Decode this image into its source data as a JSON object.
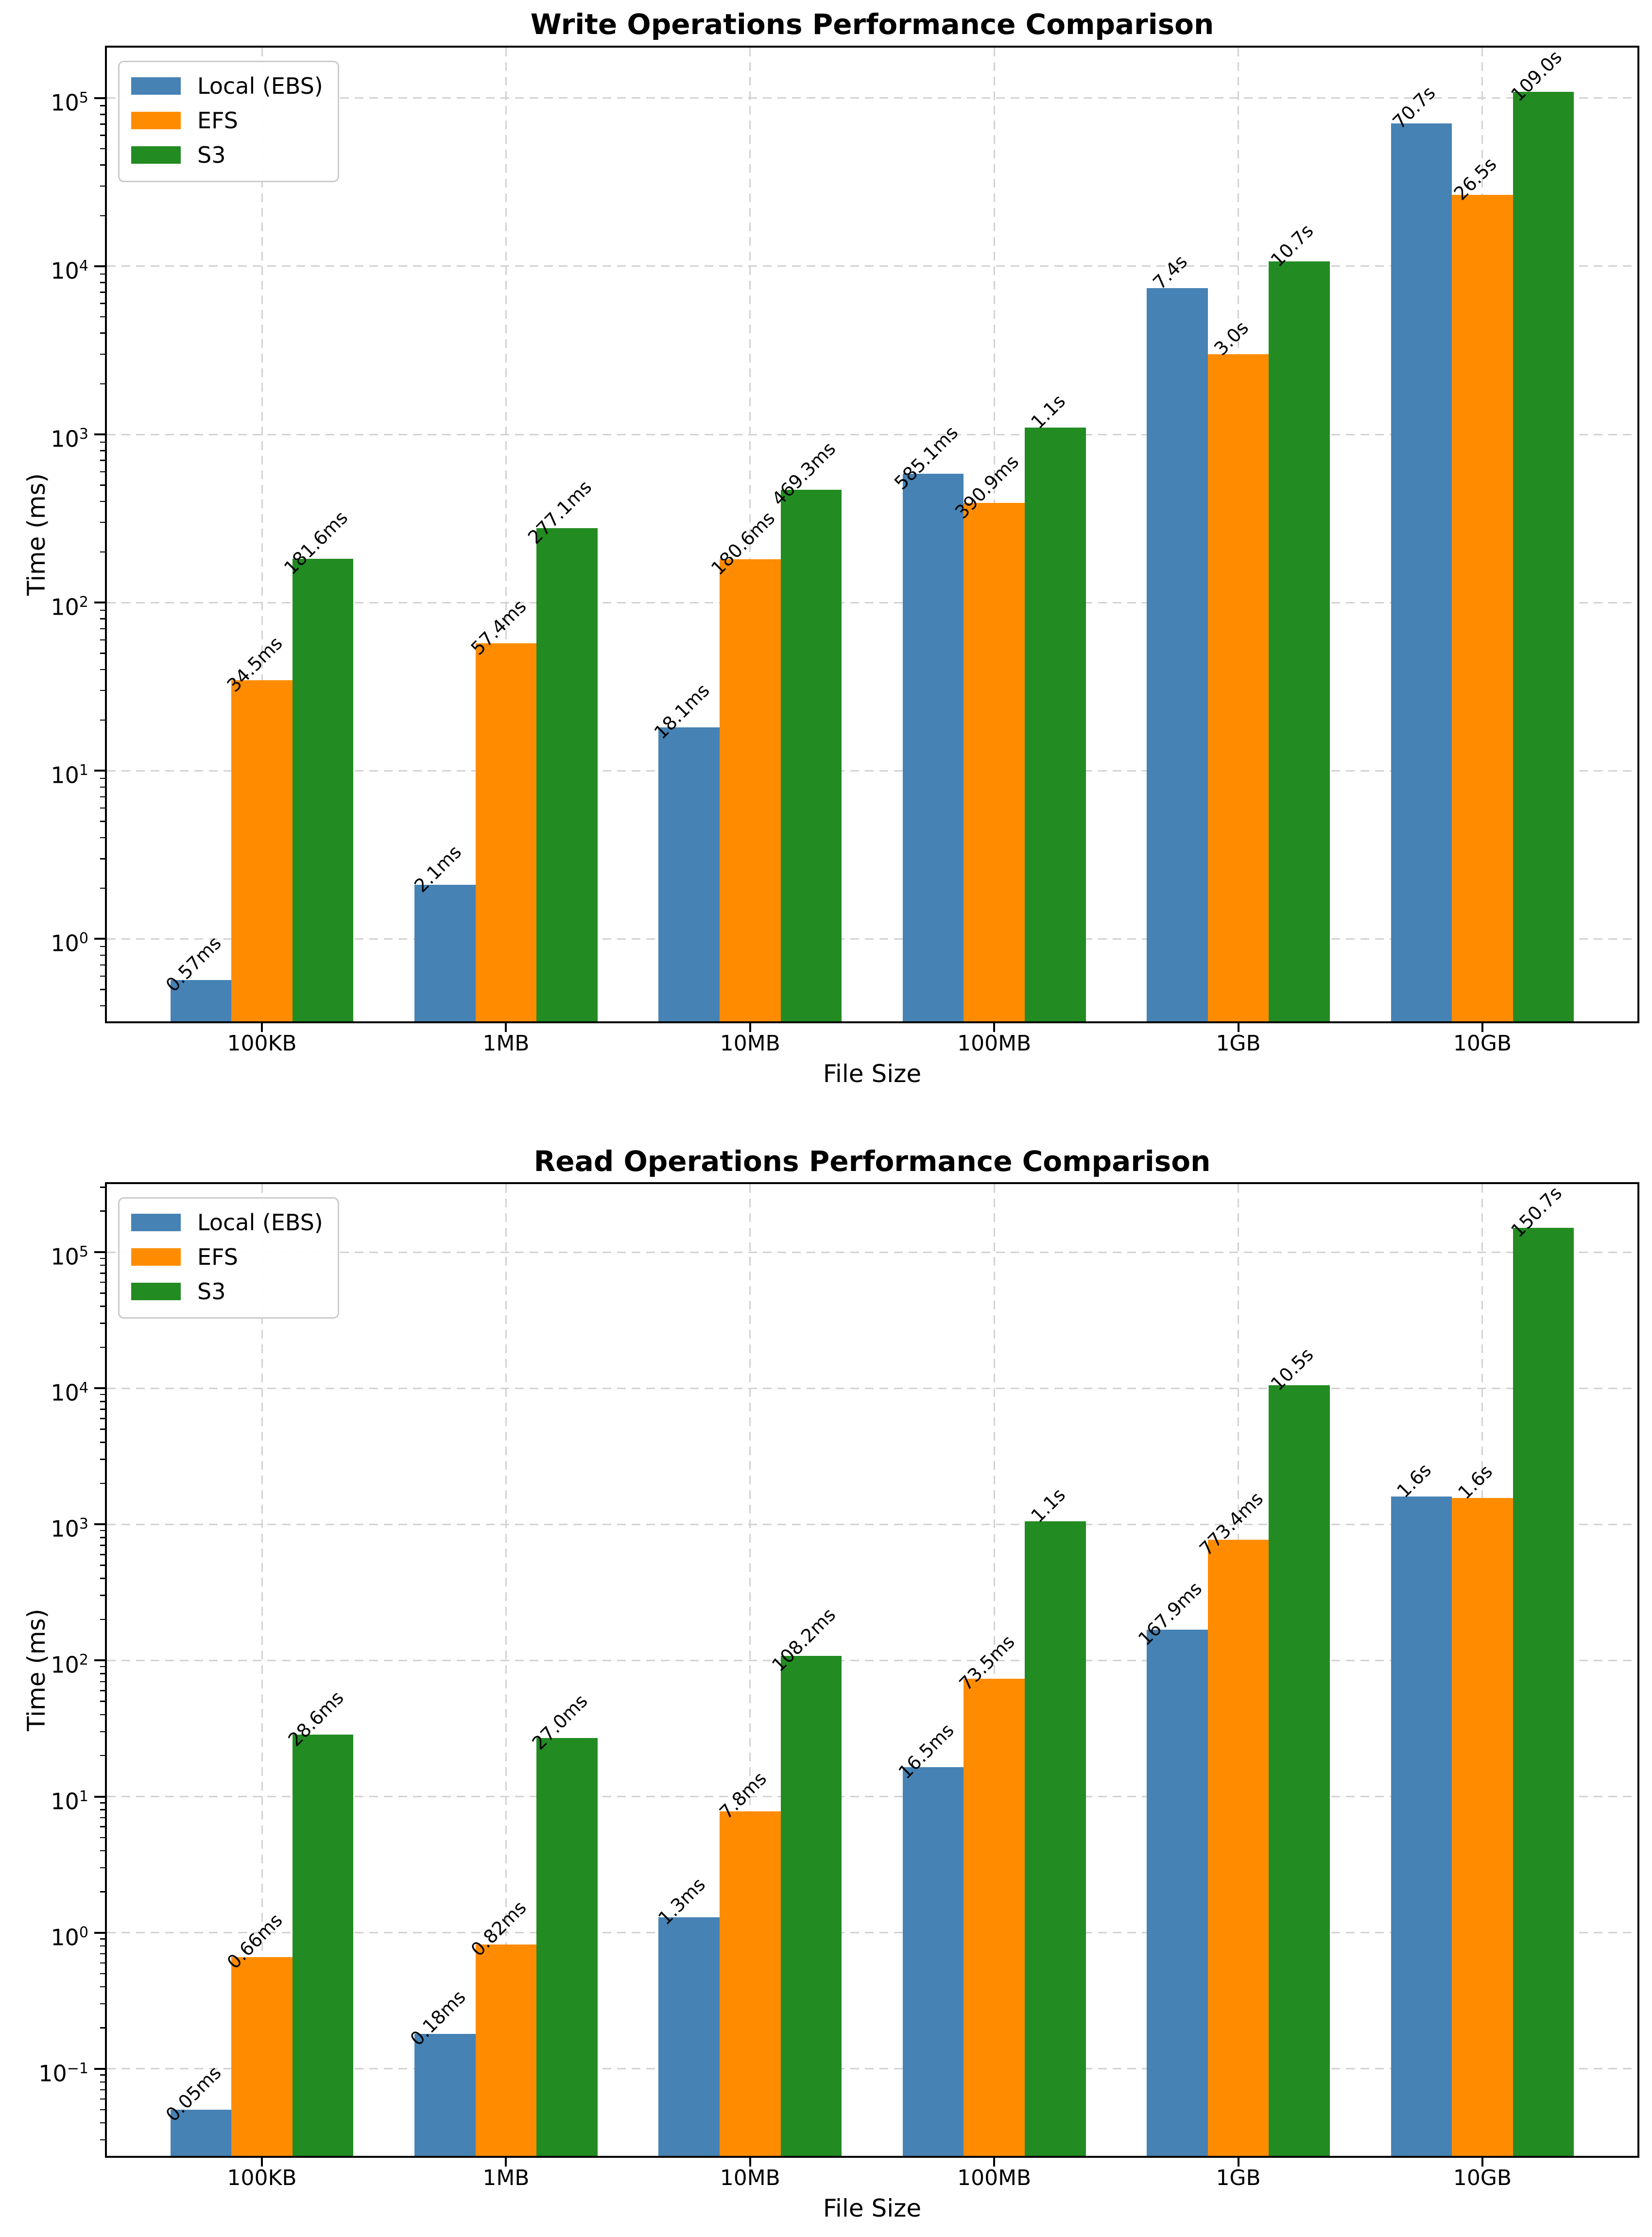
{
  "figure": {
    "background": "#ffffff",
    "series_colors": {
      "local_ebs": "#4682B4",
      "efs": "#FF8C00",
      "s3": "#228B22"
    },
    "grid_color": "#d2d2d2"
  },
  "chart_data": [
    {
      "type": "bar",
      "title": "Write Operations Performance Comparison",
      "xlabel": "File Size",
      "ylabel": "Time (ms)",
      "yscale": "log",
      "grid": true,
      "legend_position": "upper left",
      "ylim_log10": [
        -0.49,
        5.3
      ],
      "ytick_exponents": [
        0,
        1,
        2,
        3,
        4,
        5
      ],
      "categories": [
        "100KB",
        "1MB",
        "10MB",
        "100MB",
        "1GB",
        "10GB"
      ],
      "series": [
        {
          "name": "Local (EBS)",
          "color": "#4682B4",
          "values_ms": [
            0.57,
            2.1,
            18.1,
            585.1,
            7400,
            70700
          ],
          "bar_labels": [
            "0.57ms",
            "2.1ms",
            "18.1ms",
            "585.1ms",
            "7.4s",
            "70.7s"
          ]
        },
        {
          "name": "EFS",
          "color": "#FF8C00",
          "values_ms": [
            34.5,
            57.4,
            180.6,
            390.9,
            3000,
            26500
          ],
          "bar_labels": [
            "34.5ms",
            "57.4ms",
            "180.6ms",
            "390.9ms",
            "3.0s",
            "26.5s"
          ]
        },
        {
          "name": "S3",
          "color": "#228B22",
          "values_ms": [
            181.6,
            277.1,
            469.3,
            1100,
            10700,
            109000
          ],
          "bar_labels": [
            "181.6ms",
            "277.1ms",
            "469.3ms",
            "1.1s",
            "10.7s",
            "109.0s"
          ]
        }
      ]
    },
    {
      "type": "bar",
      "title": "Read Operations Performance Comparison",
      "xlabel": "File Size",
      "ylabel": "Time (ms)",
      "yscale": "log",
      "grid": true,
      "legend_position": "upper left",
      "ylim_log10": [
        -1.64,
        5.5
      ],
      "ytick_exponents": [
        -1,
        0,
        1,
        2,
        3,
        4,
        5
      ],
      "categories": [
        "100KB",
        "1MB",
        "10MB",
        "100MB",
        "1GB",
        "10GB"
      ],
      "series": [
        {
          "name": "Local (EBS)",
          "color": "#4682B4",
          "values_ms": [
            0.05,
            0.18,
            1.3,
            16.5,
            167.9,
            1600
          ],
          "bar_labels": [
            "0.05ms",
            "0.18ms",
            "1.3ms",
            "16.5ms",
            "167.9ms",
            "1.6s"
          ]
        },
        {
          "name": "EFS",
          "color": "#FF8C00",
          "values_ms": [
            0.66,
            0.82,
            7.8,
            73.5,
            773.4,
            1565
          ],
          "bar_labels": [
            "0.66ms",
            "0.82ms",
            "7.8ms",
            "73.5ms",
            "773.4ms",
            "1.6s"
          ]
        },
        {
          "name": "S3",
          "color": "#228B22",
          "values_ms": [
            28.6,
            27.0,
            108.2,
            1050,
            10500,
            150700
          ],
          "bar_labels": [
            "28.6ms",
            "27.0ms",
            "108.2ms",
            "1.1s",
            "10.5s",
            "150.7s"
          ]
        }
      ]
    }
  ]
}
